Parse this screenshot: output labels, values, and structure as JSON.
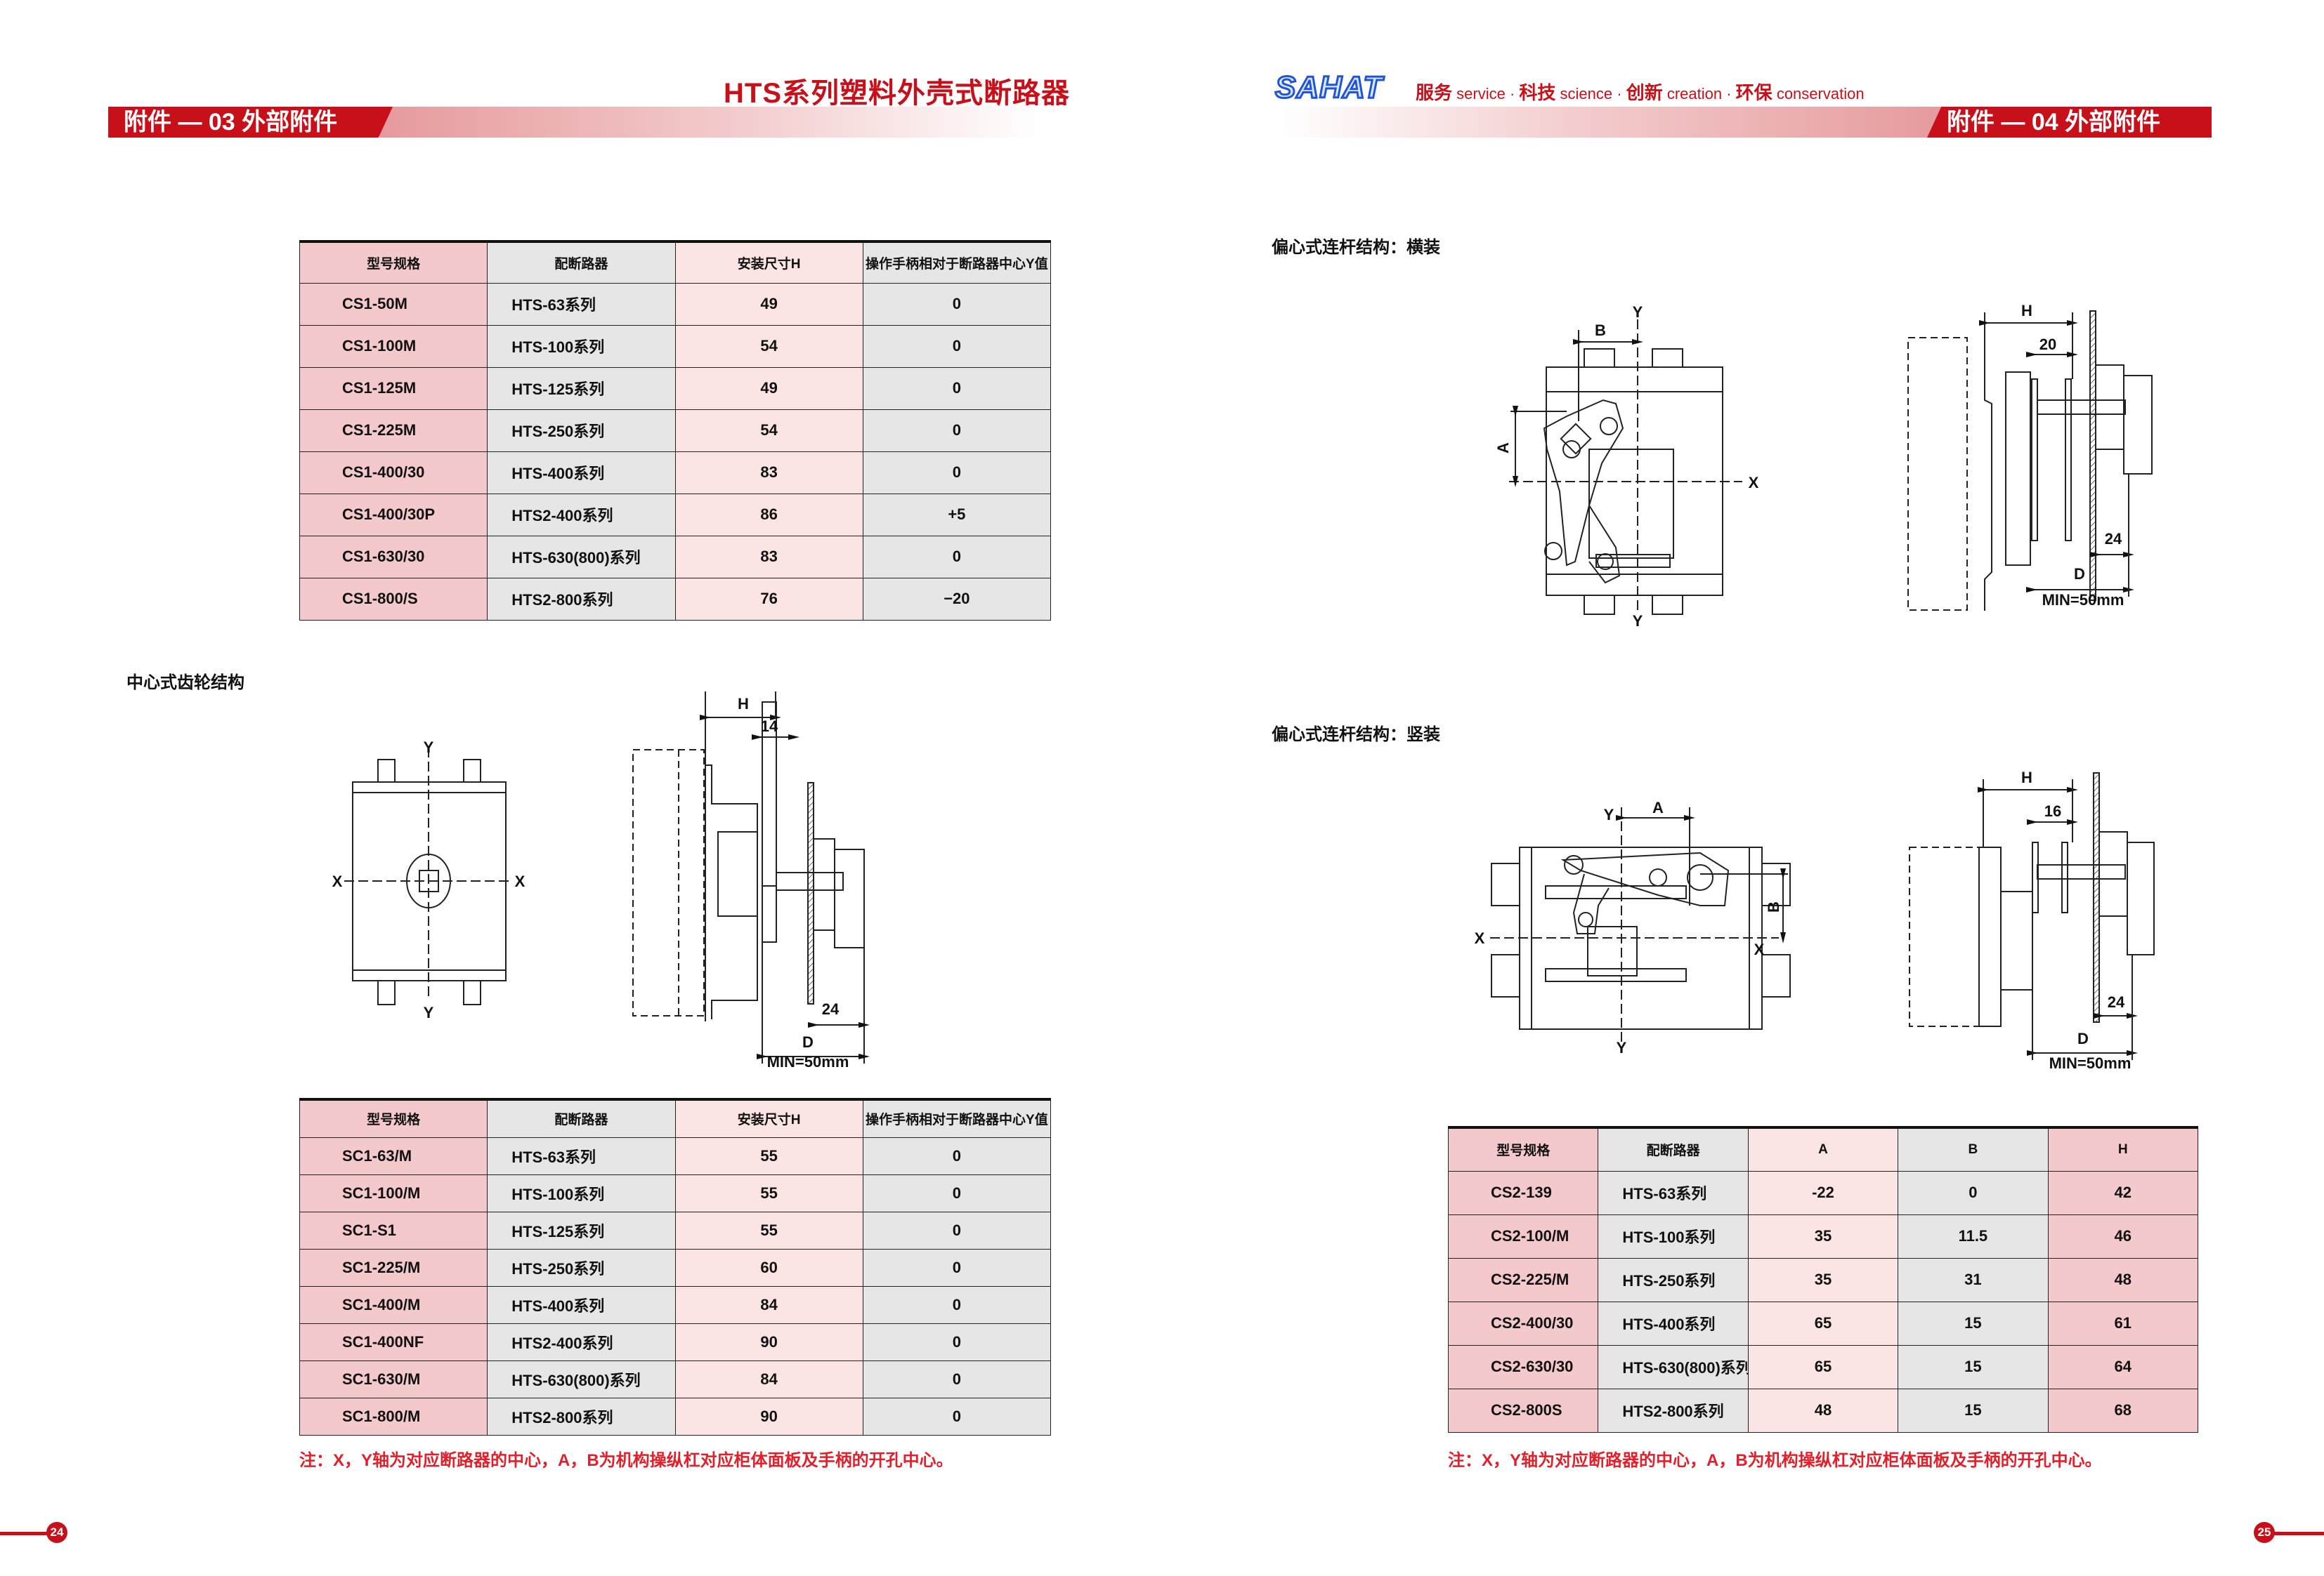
{
  "left_page": {
    "doc_title": "HTS系列塑料外壳式断路器",
    "band_label": "附件 — 03 外部附件",
    "page_number": "24",
    "table1": {
      "headers": [
        "型号规格",
        "配断路器",
        "安装尺寸H",
        "操作手柄相对于断路器中心Y值"
      ],
      "rows": [
        [
          "CS1-50M",
          "HTS-63系列",
          "49",
          "0"
        ],
        [
          "CS1-100M",
          "HTS-100系列",
          "54",
          "0"
        ],
        [
          "CS1-125M",
          "HTS-125系列",
          "49",
          "0"
        ],
        [
          "CS1-225M",
          "HTS-250系列",
          "54",
          "0"
        ],
        [
          "CS1-400/30",
          "HTS-400系列",
          "83",
          "0"
        ],
        [
          "CS1-400/30P",
          "HTS2-400系列",
          "86",
          "+5"
        ],
        [
          "CS1-630/30",
          "HTS-630(800)系列",
          "83",
          "0"
        ],
        [
          "CS1-800/S",
          "HTS2-800系列",
          "76",
          "−20"
        ]
      ]
    },
    "section_label": "中心式齿轮结构",
    "diagram": {
      "y": "Y",
      "x": "X",
      "h": "H",
      "dim_top": "14",
      "dim_24": "24",
      "d": "D",
      "min": "MIN=50mm"
    },
    "table2": {
      "headers": [
        "型号规格",
        "配断路器",
        "安装尺寸H",
        "操作手柄相对于断路器中心Y值"
      ],
      "rows": [
        [
          "SC1-63/M",
          "HTS-63系列",
          "55",
          "0"
        ],
        [
          "SC1-100/M",
          "HTS-100系列",
          "55",
          "0"
        ],
        [
          "SC1-S1",
          "HTS-125系列",
          "55",
          "0"
        ],
        [
          "SC1-225/M",
          "HTS-250系列",
          "60",
          "0"
        ],
        [
          "SC1-400/M",
          "HTS-400系列",
          "84",
          "0"
        ],
        [
          "SC1-400NF",
          "HTS2-400系列",
          "90",
          "0"
        ],
        [
          "SC1-630/M",
          "HTS-630(800)系列",
          "84",
          "0"
        ],
        [
          "SC1-800/M",
          "HTS2-800系列",
          "90",
          "0"
        ]
      ]
    },
    "note": "注：X，Y轴为对应断路器的中心，A，B为机构操纵杠对应柜体面板及手柄的开孔中心。"
  },
  "right_page": {
    "logo": "SAHAT",
    "slogan": [
      {
        "cn": "服务",
        "en": "service"
      },
      {
        "cn": "科技",
        "en": "science"
      },
      {
        "cn": "创新",
        "en": "creation"
      },
      {
        "cn": "环保",
        "en": "conservation"
      }
    ],
    "band_label": "附件 — 04 外部附件",
    "page_number": "25",
    "section1_label": "偏心式连杆结构：横装",
    "diagram1": {
      "y": "Y",
      "x": "X",
      "a": "A",
      "b": "B",
      "h": "H",
      "dim_top": "20",
      "dim_24": "24",
      "d": "D",
      "min": "MIN=50mm"
    },
    "section2_label": "偏心式连杆结构：竖装",
    "diagram2": {
      "y": "Y",
      "x": "X",
      "a": "A",
      "b": "B",
      "h": "H",
      "dim_top": "16",
      "dim_24": "24",
      "d": "D",
      "min": "MIN=50mm"
    },
    "table3": {
      "headers": [
        "型号规格",
        "配断路器",
        "A",
        "B",
        "H"
      ],
      "rows": [
        [
          "CS2-139",
          "HTS-63系列",
          "-22",
          "0",
          "42"
        ],
        [
          "CS2-100/M",
          "HTS-100系列",
          "35",
          "11.5",
          "46"
        ],
        [
          "CS2-225/M",
          "HTS-250系列",
          "35",
          "31",
          "48"
        ],
        [
          "CS2-400/30",
          "HTS-400系列",
          "65",
          "15",
          "61"
        ],
        [
          "CS2-630/30",
          "HTS-630(800)系列",
          "65",
          "15",
          "64"
        ],
        [
          "CS2-800S",
          "HTS2-800系列",
          "48",
          "15",
          "68"
        ]
      ]
    },
    "note": "注：X，Y轴为对应断路器的中心，A，B为机构操纵杠对应柜体面板及手柄的开孔中心。"
  },
  "colors": {
    "brand_red": "#c8101a",
    "note_red": "#e0202a",
    "logo_blue": "#1f55d8",
    "cell_pink": "#f4c9cb",
    "cell_gray": "#e6e6e6",
    "cell_light_pink": "#fbe4e4"
  }
}
